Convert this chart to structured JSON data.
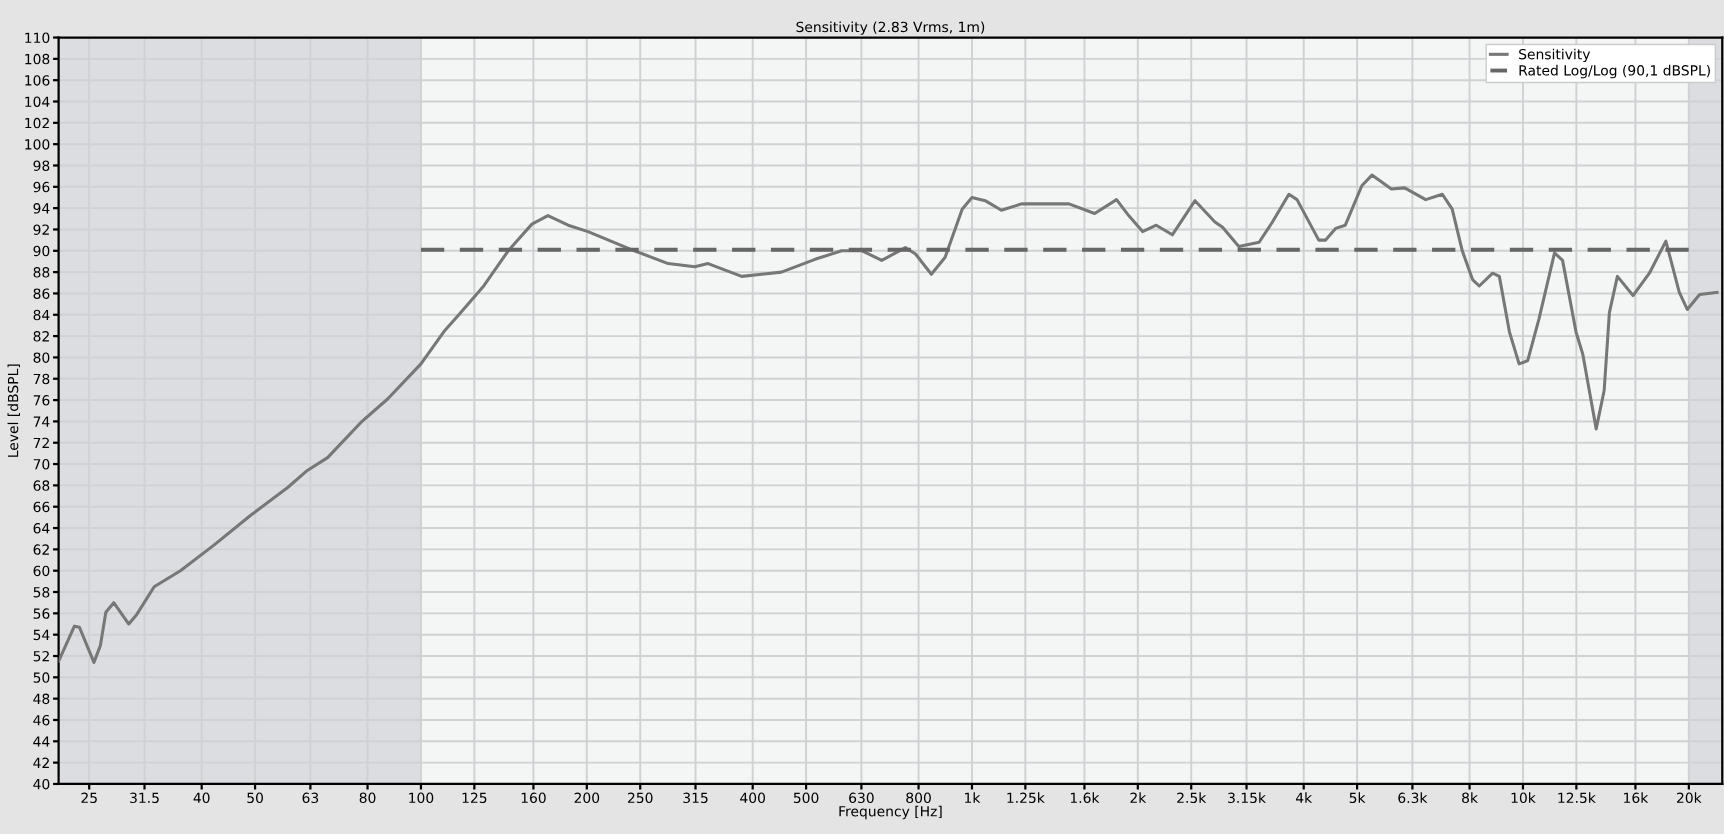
{
  "chart_data": {
    "type": "line",
    "title": "Sensitivity (2.83 Vrms, 1m)",
    "xlabel": "Frequency [Hz]",
    "ylabel": "Level [dBSPL]",
    "log": "x",
    "xlim": [
      22,
      23000
    ],
    "ylim": [
      40,
      110
    ],
    "xticks": [
      25,
      {
        "value": 31.5,
        "label": "31.5"
      },
      40,
      50,
      63,
      80,
      100,
      125,
      160,
      200,
      250,
      315,
      400,
      500,
      630,
      800,
      {
        "value": 1000,
        "label": "1k"
      },
      {
        "value": 1250,
        "label": "1.25k"
      },
      {
        "value": 1600,
        "label": "1.6k"
      },
      {
        "value": 2000,
        "label": "2k"
      },
      {
        "value": 2500,
        "label": "2.5k"
      },
      {
        "value": 3150,
        "label": "3.15k"
      },
      {
        "value": 4000,
        "label": "4k"
      },
      {
        "value": 5000,
        "label": "5k"
      },
      {
        "value": 6300,
        "label": "6.3k"
      },
      {
        "value": 8000,
        "label": "8k"
      },
      {
        "value": 10000,
        "label": "10k"
      },
      {
        "value": 12500,
        "label": "12.5k"
      },
      {
        "value": 16000,
        "label": "16k"
      },
      {
        "value": 20000,
        "label": "20k"
      }
    ],
    "yticks": [
      40,
      42,
      44,
      46,
      48,
      50,
      52,
      54,
      56,
      58,
      60,
      62,
      64,
      66,
      68,
      70,
      72,
      74,
      76,
      78,
      80,
      82,
      84,
      86,
      88,
      90,
      92,
      94,
      96,
      98,
      100,
      102,
      104,
      106,
      108,
      110
    ],
    "grid": true,
    "legend": "top right",
    "bands": [
      {
        "axis": "x",
        "from": 22,
        "to": 100,
        "color": "#dcdde1"
      },
      {
        "axis": "x",
        "from": 20000,
        "to": 23000,
        "color": "#dcdde1"
      }
    ],
    "series": [
      {
        "name": "Sensitivity",
        "color": "#777777",
        "line_style": "solid",
        "x": [
          22,
          23.5,
          24,
          25.5,
          26.2,
          26.8,
          27.7,
          29.5,
          30.5,
          32.8,
          36.6,
          42.1,
          49.1,
          57.3,
          62.2,
          67.7,
          77.8,
          87,
          100,
          110,
          118,
          130,
          144,
          159,
          170,
          185,
          201,
          244,
          281,
          314,
          332,
          382,
          451,
          519,
          580,
          632,
          686,
          757,
          790,
          844,
          894,
          960,
          1000,
          1057,
          1131,
          1230,
          1500,
          1670,
          1830,
          1925,
          2040,
          2160,
          2310,
          2540,
          2760,
          2850,
          3050,
          3320,
          3510,
          3760,
          3890,
          4260,
          4380,
          4570,
          4760,
          5100,
          5320,
          5770,
          6100,
          6660,
          7140,
          7440,
          7760,
          8100,
          8330,
          8810,
          9060,
          9450,
          9840,
          10200,
          10690,
          11410,
          11800,
          12480,
          12840,
          13580,
          14040,
          14350,
          14840,
          15840,
          16960,
          18170,
          19220,
          19870,
          20920,
          22500
        ],
        "values": [
          51.5,
          54.8,
          54.7,
          51.4,
          53.0,
          56.1,
          57.0,
          55.0,
          55.9,
          58.5,
          60.0,
          62.4,
          65.2,
          67.8,
          69.4,
          70.6,
          73.9,
          76.1,
          79.4,
          82.4,
          84.2,
          86.7,
          90.0,
          92.5,
          93.3,
          92.4,
          91.8,
          90.0,
          88.8,
          88.5,
          88.8,
          87.6,
          88.0,
          89.2,
          90.0,
          90.0,
          89.1,
          90.3,
          89.7,
          87.8,
          89.4,
          93.9,
          95.0,
          94.7,
          93.8,
          94.4,
          94.4,
          93.5,
          94.8,
          93.3,
          91.8,
          92.4,
          91.5,
          94.7,
          92.7,
          92.2,
          90.4,
          90.8,
          92.7,
          95.3,
          94.8,
          91.0,
          91.0,
          92.1,
          92.4,
          96.1,
          97.1,
          95.8,
          95.9,
          94.8,
          95.3,
          93.9,
          90.0,
          87.3,
          86.7,
          87.9,
          87.6,
          82.4,
          79.4,
          79.7,
          83.6,
          89.8,
          89.1,
          82.4,
          80.3,
          73.3,
          76.9,
          84.2,
          87.6,
          85.8,
          87.9,
          90.9,
          86.1,
          84.5,
          85.9,
          86.1
        ]
      },
      {
        "name": "Rated Log/Log (90,1 dBSPL)",
        "color": "#666666",
        "line_style": "dashed",
        "x": [
          100,
          20000
        ],
        "values": [
          90.1,
          90.1
        ]
      }
    ]
  }
}
